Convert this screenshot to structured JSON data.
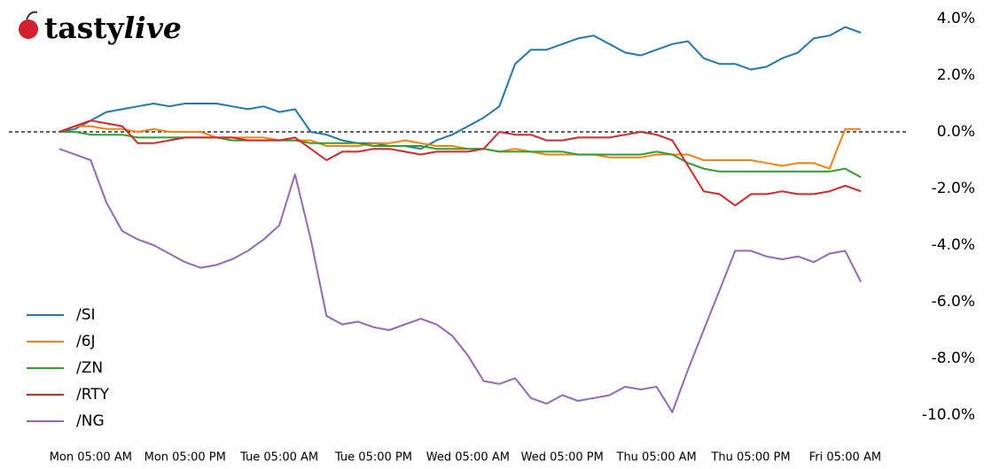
{
  "chart_data": {
    "type": "line",
    "logo": {
      "prefix": "tasty",
      "suffix": "live"
    },
    "x": [
      -4,
      -2,
      0,
      2,
      4,
      6,
      8,
      10,
      12,
      14,
      16,
      18,
      20,
      22,
      24,
      26,
      28,
      30,
      32,
      34,
      36,
      38,
      40,
      42,
      44,
      46,
      48,
      50,
      52,
      54,
      56,
      58,
      60,
      62,
      64,
      66,
      68,
      70,
      72,
      74,
      76,
      78,
      80,
      82,
      84,
      86,
      88,
      90,
      92,
      94,
      96,
      98
    ],
    "xlim": [
      -5,
      99
    ],
    "xticks": [
      {
        "value": 0,
        "label": "Mon 05:00 AM"
      },
      {
        "value": 12,
        "label": "Mon 05:00 PM"
      },
      {
        "value": 24,
        "label": "Tue 05:00 AM"
      },
      {
        "value": 36,
        "label": "Tue 05:00 PM"
      },
      {
        "value": 48,
        "label": "Wed 05:00 AM"
      },
      {
        "value": 60,
        "label": "Wed 05:00 PM"
      },
      {
        "value": 72,
        "label": "Thu 05:00 AM"
      },
      {
        "value": 84,
        "label": "Thu 05:00 PM"
      },
      {
        "value": 96,
        "label": "Fri 05:00 AM"
      }
    ],
    "ylim": [
      -10.5,
      4.5
    ],
    "yticks": [
      {
        "value": 4,
        "label": "4.0%"
      },
      {
        "value": 2,
        "label": "2.0%"
      },
      {
        "value": 0,
        "label": "0.0%"
      },
      {
        "value": -2,
        "label": "-2.0%"
      },
      {
        "value": -4,
        "label": "-4.0%"
      },
      {
        "value": -6,
        "label": "-6.0%"
      },
      {
        "value": -8,
        "label": "-8.0%"
      },
      {
        "value": -10,
        "label": "-10.0%"
      }
    ],
    "zero_line": true,
    "legend": "lower left",
    "series": [
      {
        "name": "/SI",
        "color": "#1f77b4",
        "values": [
          0.0,
          0.1,
          0.4,
          0.7,
          0.8,
          0.9,
          1.0,
          0.9,
          1.0,
          1.0,
          1.0,
          0.9,
          0.8,
          0.9,
          0.7,
          0.8,
          0.0,
          -0.1,
          -0.3,
          -0.4,
          -0.4,
          -0.5,
          -0.5,
          -0.6,
          -0.3,
          -0.1,
          0.2,
          0.5,
          0.9,
          2.4,
          2.9,
          2.9,
          3.1,
          3.3,
          3.4,
          3.1,
          2.8,
          2.7,
          2.9,
          3.1,
          3.2,
          2.6,
          2.4,
          2.4,
          2.2,
          2.3,
          2.6,
          2.8,
          3.3,
          3.4,
          3.7,
          3.5
        ]
      },
      {
        "name": "/6J",
        "color": "#ff7f0e",
        "values": [
          0.0,
          0.2,
          0.2,
          0.1,
          0.1,
          0.0,
          0.1,
          0.0,
          0.0,
          0.0,
          -0.2,
          -0.2,
          -0.2,
          -0.2,
          -0.3,
          -0.3,
          -0.3,
          -0.5,
          -0.5,
          -0.5,
          -0.4,
          -0.4,
          -0.3,
          -0.4,
          -0.5,
          -0.5,
          -0.6,
          -0.6,
          -0.7,
          -0.6,
          -0.7,
          -0.8,
          -0.8,
          -0.8,
          -0.8,
          -0.9,
          -0.9,
          -0.9,
          -0.8,
          -0.8,
          -0.8,
          -1.0,
          -1.0,
          -1.0,
          -1.0,
          -1.1,
          -1.2,
          -1.1,
          -1.1,
          -1.3,
          0.1,
          0.1
        ]
      },
      {
        "name": "/ZN",
        "color": "#2ca02c",
        "values": [
          0.0,
          0.0,
          -0.1,
          -0.1,
          -0.1,
          -0.2,
          -0.2,
          -0.2,
          -0.2,
          -0.2,
          -0.2,
          -0.3,
          -0.3,
          -0.3,
          -0.3,
          -0.3,
          -0.4,
          -0.4,
          -0.4,
          -0.4,
          -0.5,
          -0.5,
          -0.5,
          -0.5,
          -0.6,
          -0.6,
          -0.6,
          -0.6,
          -0.7,
          -0.7,
          -0.7,
          -0.7,
          -0.7,
          -0.8,
          -0.8,
          -0.8,
          -0.8,
          -0.8,
          -0.7,
          -0.8,
          -1.1,
          -1.3,
          -1.4,
          -1.4,
          -1.4,
          -1.4,
          -1.4,
          -1.4,
          -1.4,
          -1.4,
          -1.3,
          -1.6
        ]
      },
      {
        "name": "/RTY",
        "color": "#d62728",
        "values": [
          0.0,
          0.2,
          0.4,
          0.3,
          0.2,
          -0.4,
          -0.4,
          -0.3,
          -0.2,
          -0.2,
          -0.2,
          -0.2,
          -0.3,
          -0.3,
          -0.3,
          -0.2,
          -0.6,
          -1.0,
          -0.7,
          -0.7,
          -0.6,
          -0.6,
          -0.7,
          -0.8,
          -0.7,
          -0.7,
          -0.7,
          -0.6,
          0.0,
          -0.1,
          -0.1,
          -0.3,
          -0.3,
          -0.2,
          -0.2,
          -0.2,
          -0.1,
          0.0,
          -0.1,
          -0.3,
          -1.2,
          -2.1,
          -2.2,
          -2.6,
          -2.2,
          -2.2,
          -2.1,
          -2.2,
          -2.2,
          -2.1,
          -1.9,
          -2.1
        ]
      },
      {
        "name": "/NG",
        "color": "#9467bd",
        "values": [
          -0.6,
          -0.8,
          -1.0,
          -2.5,
          -3.5,
          -3.8,
          -4.0,
          -4.3,
          -4.6,
          -4.8,
          -4.7,
          -4.5,
          -4.2,
          -3.8,
          -3.3,
          -1.5,
          -3.8,
          -6.5,
          -6.8,
          -6.7,
          -6.9,
          -7.0,
          -6.8,
          -6.6,
          -6.8,
          -7.2,
          -7.9,
          -8.8,
          -8.9,
          -8.7,
          -9.4,
          -9.6,
          -9.3,
          -9.5,
          -9.4,
          -9.3,
          -9.0,
          -9.1,
          -9.0,
          -9.9,
          -8.4,
          -7.0,
          -5.6,
          -4.2,
          -4.2,
          -4.4,
          -4.5,
          -4.4,
          -4.6,
          -4.3,
          -4.2,
          -5.3
        ]
      }
    ]
  }
}
